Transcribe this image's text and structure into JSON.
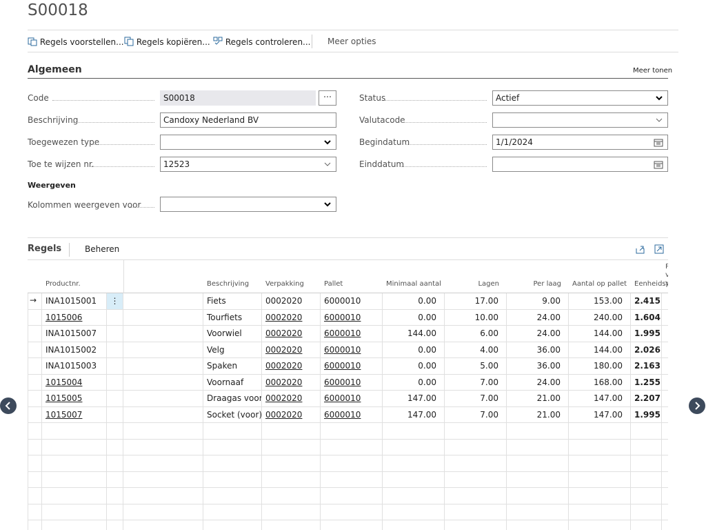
{
  "header": {
    "title": "S00018"
  },
  "actions": [
    "Regels voorstellen...",
    "Regels kopiëren...",
    "Regels controleren...",
    "Meer opties"
  ],
  "general": {
    "title": "Algemeen",
    "show_more": "Meer tonen",
    "left": [
      {
        "label": "Code",
        "value": "S00018"
      },
      {
        "label": "Beschrijving",
        "value": "Candoxy Nederland BV"
      },
      {
        "label": "Toegewezen type"
      },
      {
        "label": "Toe te wijzen nr.",
        "value": "12523"
      }
    ],
    "right": [
      {
        "label": "Status",
        "value": "Actief"
      },
      {
        "label": "Valutacode"
      },
      {
        "label": "Begindatum",
        "value": "1/1/2024"
      },
      {
        "label": "Einddatum"
      }
    ]
  },
  "display": {
    "title": "Weergeven",
    "fields": [
      {
        "label": "Kolommen weergeven voor"
      }
    ]
  },
  "lines": {
    "tabs": [
      "Regels",
      "Beheren"
    ],
    "columns": [
      "Productnr.",
      "Beschrijving",
      "Verpakking",
      "Pallet",
      "Minimaal aantal",
      "Lagen",
      "Per laag",
      "Aantal op pallet",
      "Eenheidsprijs",
      "Prijs volle vrac..."
    ],
    "rows": [
      [
        "INA1015001",
        "Fiets",
        "0002020",
        "6000010",
        "0.00",
        "17.00",
        "9.00",
        "153.00",
        "2.415"
      ],
      [
        "1015006",
        "Tourfiets",
        "0002020",
        "6000010",
        "0.00",
        "10.00",
        "24.00",
        "240.00",
        "1.604"
      ],
      [
        "INA1015007",
        "Voorwiel",
        "0002020",
        "6000010",
        "144.00",
        "6.00",
        "24.00",
        "144.00",
        "1.995"
      ],
      [
        "INA1015002",
        "Velg",
        "0002020",
        "6000010",
        "0.00",
        "4.00",
        "36.00",
        "144.00",
        "2.026"
      ],
      [
        "INA1015003",
        "Spaken",
        "0002020",
        "6000010",
        "0.00",
        "5.00",
        "36.00",
        "180.00",
        "2.163"
      ],
      [
        "1015004",
        "Voornaaf",
        "0002020",
        "6000010",
        "0.00",
        "7.00",
        "24.00",
        "168.00",
        "1.255"
      ],
      [
        "1015005",
        "Draagas voorwiel",
        "0002020",
        "6000010",
        "147.00",
        "7.00",
        "21.00",
        "147.00",
        "2.207"
      ],
      [
        "1015007",
        "Socket (voor)",
        "0002020",
        "6000010",
        "147.00",
        "7.00",
        "21.00",
        "147.00",
        "1.995"
      ]
    ]
  }
}
